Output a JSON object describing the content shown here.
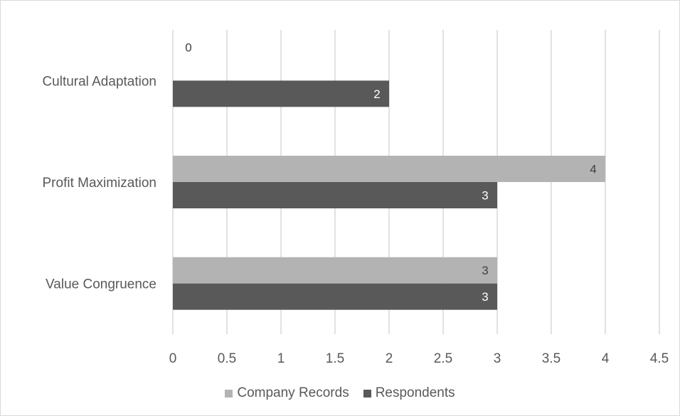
{
  "chart_data": {
    "type": "bar",
    "orientation": "horizontal",
    "categories": [
      "Cultural Adaptation",
      "Profit Maximization",
      "Value Congruence"
    ],
    "series": [
      {
        "name": "Company Records",
        "values": [
          0,
          4,
          3
        ],
        "color": "#b3b3b3",
        "label_color": "#404040"
      },
      {
        "name": "Respondents",
        "values": [
          2,
          3,
          3
        ],
        "color": "#595959",
        "label_color": "#ffffff"
      }
    ],
    "xlim": [
      0,
      4.5
    ],
    "xticks": [
      0,
      0.5,
      1,
      1.5,
      2,
      2.5,
      3,
      3.5,
      4,
      4.5
    ],
    "xtick_labels": [
      "0",
      "0.5",
      "1",
      "1.5",
      "2",
      "2.5",
      "3",
      "3.5",
      "4",
      "4.5"
    ],
    "grid": "vertical",
    "legend": "bottom",
    "data_labels": true,
    "title": "",
    "xlabel": "",
    "ylabel": ""
  }
}
